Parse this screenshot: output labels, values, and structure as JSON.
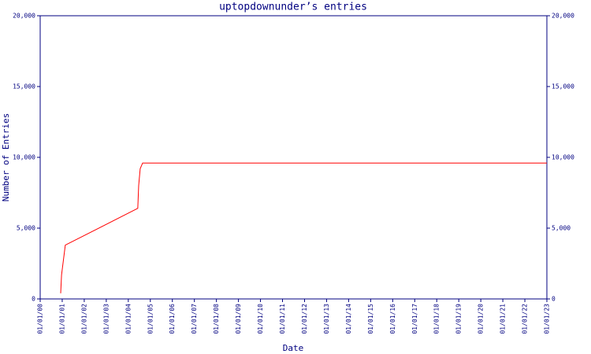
{
  "chart_data": {
    "type": "line",
    "title": "uptopdownunder’s entries",
    "x_label": "Date",
    "y_label": "Number of Entries",
    "series": [
      {
        "name": "entries",
        "color": "#ff0000",
        "x": [
          2000.93,
          2000.97,
          2001.14,
          2004.43,
          2004.47,
          2004.54,
          2004.65,
          2023
        ],
        "values": [
          400,
          1700,
          3800,
          6400,
          8000,
          9200,
          9600,
          9600
        ]
      }
    ],
    "xlim": [
      2000,
      2023
    ],
    "xticks": [
      {
        "value": 2000,
        "label": "01/01/00"
      },
      {
        "value": 2001,
        "label": "01/01/01"
      },
      {
        "value": 2002,
        "label": "01/01/02"
      },
      {
        "value": 2003,
        "label": "01/01/03"
      },
      {
        "value": 2004,
        "label": "01/01/04"
      },
      {
        "value": 2005,
        "label": "01/01/05"
      },
      {
        "value": 2006,
        "label": "01/01/06"
      },
      {
        "value": 2007,
        "label": "01/01/07"
      },
      {
        "value": 2008,
        "label": "01/01/08"
      },
      {
        "value": 2009,
        "label": "01/01/09"
      },
      {
        "value": 2010,
        "label": "01/01/10"
      },
      {
        "value": 2011,
        "label": "01/01/11"
      },
      {
        "value": 2012,
        "label": "01/01/12"
      },
      {
        "value": 2013,
        "label": "01/01/13"
      },
      {
        "value": 2014,
        "label": "01/01/14"
      },
      {
        "value": 2015,
        "label": "01/01/15"
      },
      {
        "value": 2016,
        "label": "01/01/16"
      },
      {
        "value": 2017,
        "label": "01/01/17"
      },
      {
        "value": 2018,
        "label": "01/01/18"
      },
      {
        "value": 2019,
        "label": "01/01/19"
      },
      {
        "value": 2020,
        "label": "01/01/20"
      },
      {
        "value": 2021,
        "label": "01/01/21"
      },
      {
        "value": 2022,
        "label": "01/01/22"
      },
      {
        "value": 2023,
        "label": "01/01/23"
      }
    ],
    "ylim": [
      0,
      20000
    ],
    "yticks": [
      0,
      {
        "value": 5000,
        "label": "5,000"
      },
      {
        "value": 10000,
        "label": "10,000"
      },
      {
        "value": 15000,
        "label": "15,000"
      },
      {
        "value": 20000,
        "label": "20,000"
      }
    ],
    "grid": false
  }
}
